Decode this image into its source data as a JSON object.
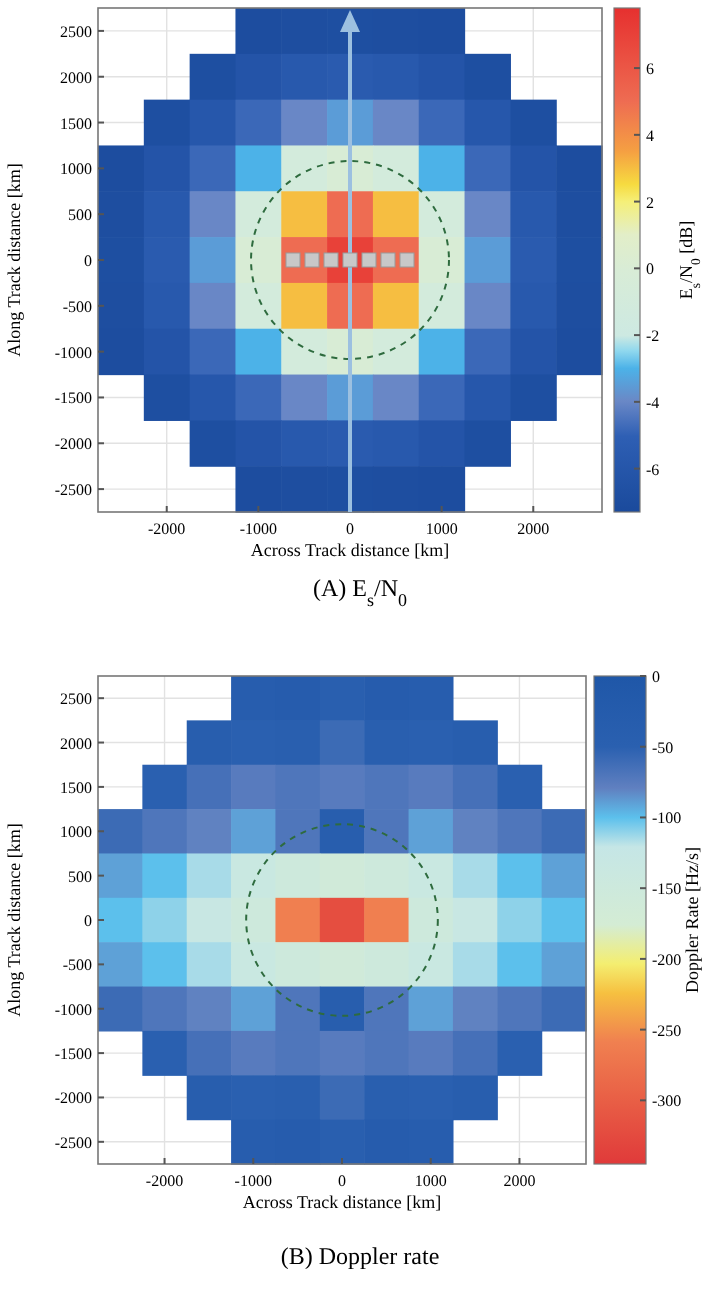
{
  "chart_data": [
    {
      "type": "heatmap",
      "title": "(A) E$_{s}$/N$_{0}$",
      "xlabel": "Across Track distance [km]",
      "ylabel": "Along Track distance [km]",
      "clabel": "E$_{s}$/N$_{0}$ [dB]",
      "categories": [
        null,
        "-2000",
        null,
        "-1000",
        null,
        "0",
        null,
        "1000",
        null,
        "2000",
        null
      ],
      "y_categories": [
        "2500",
        "2000",
        "1500",
        "1000",
        "500",
        "0",
        "-500",
        "-1000",
        "-1500",
        "-2000",
        "-2500"
      ],
      "cells": [
        [
          null,
          null,
          null,
          -7,
          -6.9,
          -6.8,
          -6.9,
          -7,
          null,
          null,
          null
        ],
        [
          null,
          null,
          -6.8,
          -6.2,
          -5.7,
          -5.5,
          -5.7,
          -6.2,
          -6.8,
          null,
          null
        ],
        [
          null,
          -6.8,
          -5.9,
          -4.8,
          -4,
          -3.5,
          -4,
          -4.8,
          -5.9,
          -6.8,
          null
        ],
        [
          -7,
          -6.2,
          -4.8,
          -3,
          -1,
          0,
          -1,
          -3,
          -4.8,
          -6.2,
          -7
        ],
        [
          -6.9,
          -5.7,
          -4,
          -1,
          3,
          5,
          3,
          -1,
          -4,
          -5.7,
          -6.9
        ],
        [
          -6.8,
          -5.5,
          -3.5,
          0,
          5,
          7,
          5,
          0,
          -3.5,
          -5.5,
          -6.8
        ],
        [
          -6.9,
          -5.7,
          -4,
          -1,
          3,
          5,
          3,
          -1,
          -4,
          -5.7,
          -6.9
        ],
        [
          -7,
          -6.2,
          -4.8,
          -3,
          -1,
          0,
          -1,
          -3,
          -4.8,
          -6.2,
          -7
        ],
        [
          null,
          -6.8,
          -5.9,
          -4.8,
          -4,
          -3.5,
          -4,
          -4.8,
          -5.9,
          -6.8,
          null
        ],
        [
          null,
          null,
          -6.8,
          -6.2,
          -5.7,
          -5.5,
          -5.7,
          -6.2,
          -6.8,
          null,
          null
        ],
        [
          null,
          null,
          null,
          -7,
          -6.9,
          -6.8,
          -6.9,
          -7,
          null,
          null,
          null
        ]
      ],
      "clim": [
        -7.3,
        7.8
      ],
      "cticks": [
        -6,
        -4,
        -2,
        0,
        2,
        4,
        6
      ],
      "grid": true
    },
    {
      "type": "heatmap",
      "title": "(B) Doppler rate",
      "xlabel": "Across Track distance [km]",
      "ylabel": "Along Track distance [km]",
      "clabel": "Doppler Rate [Hz/s]",
      "categories": [
        null,
        "-2000",
        null,
        "-1000",
        null,
        "0",
        null,
        "1000",
        null,
        "2000",
        null
      ],
      "y_categories": [
        "2500",
        "2000",
        "1500",
        "1000",
        "500",
        "0",
        "-500",
        "-1000",
        "-1500",
        "-2000",
        "-2500"
      ],
      "cells": [
        [
          null,
          null,
          null,
          -35,
          -30,
          -45,
          -30,
          -35,
          null,
          null,
          null
        ],
        [
          null,
          null,
          -40,
          -50,
          -45,
          -60,
          -45,
          -50,
          -40,
          null,
          null
        ],
        [
          null,
          -50,
          -65,
          -75,
          -70,
          -75,
          -70,
          -75,
          -65,
          -50,
          null
        ],
        [
          -60,
          -70,
          -80,
          -90,
          -70,
          -40,
          -70,
          -90,
          -80,
          -70,
          -60
        ],
        [
          -90,
          -100,
          -115,
          -135,
          -150,
          -160,
          -150,
          -135,
          -115,
          -100,
          -90
        ],
        [
          -100,
          -110,
          -130,
          -150,
          -260,
          -320,
          -260,
          -150,
          -130,
          -110,
          -100
        ],
        [
          -90,
          -100,
          -115,
          -135,
          -150,
          -160,
          -150,
          -135,
          -115,
          -100,
          -90
        ],
        [
          -60,
          -70,
          -80,
          -90,
          -70,
          -40,
          -70,
          -90,
          -80,
          -70,
          -60
        ],
        [
          null,
          -50,
          -65,
          -75,
          -70,
          -75,
          -70,
          -75,
          -65,
          -50,
          null
        ],
        [
          null,
          null,
          -40,
          -50,
          -45,
          -60,
          -45,
          -50,
          -40,
          null,
          null
        ],
        [
          null,
          null,
          null,
          -35,
          -30,
          -45,
          -30,
          -35,
          null,
          null,
          null
        ]
      ],
      "clim": [
        -345,
        0
      ],
      "cticks": [
        -300,
        -250,
        -200,
        -150,
        -100,
        -50,
        0
      ],
      "grid": true
    }
  ]
}
